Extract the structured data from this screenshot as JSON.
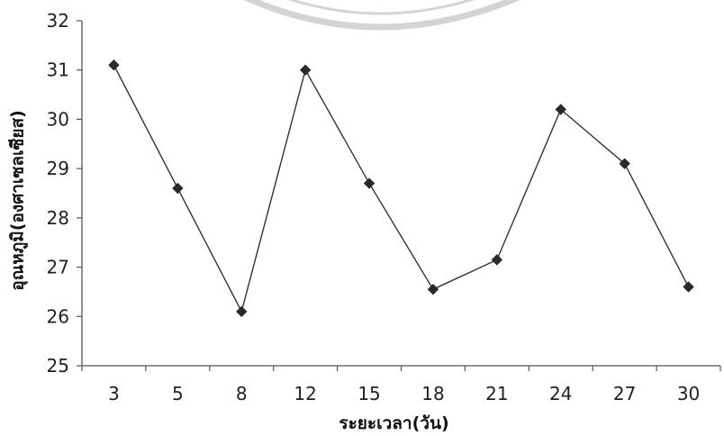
{
  "chart_data": {
    "type": "line",
    "title": "",
    "xlabel": "ระยะเวลา(วัน)",
    "ylabel": "อุณหภูมิ(องศาเซลเซียส)",
    "categories": [
      "3",
      "5",
      "8",
      "12",
      "15",
      "18",
      "21",
      "24",
      "27",
      "30"
    ],
    "series": [
      {
        "values": [
          31.1,
          28.6,
          26.1,
          31.0,
          28.7,
          26.55,
          27.15,
          30.2,
          29.1,
          26.6
        ],
        "color": "#333333",
        "marker": "diamond"
      }
    ],
    "ylim": [
      25,
      32
    ],
    "yticks": [
      25,
      26,
      27,
      28,
      29,
      30,
      31,
      32
    ],
    "grid": false,
    "legend": "none"
  }
}
